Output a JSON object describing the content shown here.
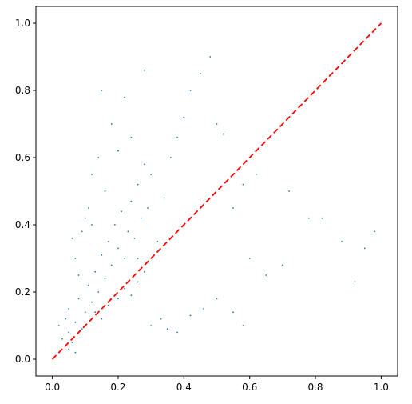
{
  "chart_data": {
    "type": "scatter",
    "title": "",
    "xlabel": "",
    "ylabel": "",
    "xlim": [
      -0.05,
      1.05
    ],
    "ylim": [
      -0.05,
      1.05
    ],
    "xticks": [
      0.0,
      0.2,
      0.4,
      0.6,
      0.8,
      1.0
    ],
    "xtick_labels": [
      "0.0",
      "0.2",
      "0.4",
      "0.6",
      "0.8",
      "1.0"
    ],
    "yticks": [
      0.0,
      0.2,
      0.4,
      0.6,
      0.8,
      1.0
    ],
    "ytick_labels": [
      "0.0",
      "0.2",
      "0.4",
      "0.6",
      "0.8",
      "1.0"
    ],
    "grid": false,
    "legend": "none",
    "point_color": "#1f77b4",
    "reference_line": {
      "x": [
        0.0,
        1.0
      ],
      "y": [
        0.0,
        1.0
      ],
      "color": "#ff0000",
      "style": "dashed"
    },
    "series": [
      {
        "points": [
          [
            0.02,
            0.1
          ],
          [
            0.03,
            0.06
          ],
          [
            0.04,
            0.12
          ],
          [
            0.05,
            0.08
          ],
          [
            0.05,
            0.15
          ],
          [
            0.06,
            0.05
          ],
          [
            0.07,
            0.11
          ],
          [
            0.08,
            0.18
          ],
          [
            0.09,
            0.09
          ],
          [
            0.1,
            0.14
          ],
          [
            0.11,
            0.22
          ],
          [
            0.12,
            0.17
          ],
          [
            0.13,
            0.26
          ],
          [
            0.14,
            0.2
          ],
          [
            0.15,
            0.31
          ],
          [
            0.16,
            0.24
          ],
          [
            0.17,
            0.35
          ],
          [
            0.18,
            0.28
          ],
          [
            0.19,
            0.4
          ],
          [
            0.2,
            0.33
          ],
          [
            0.21,
            0.44
          ],
          [
            0.22,
            0.3
          ],
          [
            0.23,
            0.38
          ],
          [
            0.24,
            0.47
          ],
          [
            0.25,
            0.36
          ],
          [
            0.26,
            0.52
          ],
          [
            0.27,
            0.42
          ],
          [
            0.28,
            0.58
          ],
          [
            0.29,
            0.45
          ],
          [
            0.3,
            0.55
          ],
          [
            0.06,
            0.36
          ],
          [
            0.09,
            0.38
          ],
          [
            0.1,
            0.42
          ],
          [
            0.11,
            0.45
          ],
          [
            0.12,
            0.4
          ],
          [
            0.08,
            0.25
          ],
          [
            0.07,
            0.3
          ],
          [
            0.13,
            0.14
          ],
          [
            0.15,
            0.12
          ],
          [
            0.17,
            0.16
          ],
          [
            0.2,
            0.18
          ],
          [
            0.22,
            0.21
          ],
          [
            0.24,
            0.19
          ],
          [
            0.26,
            0.23
          ],
          [
            0.28,
            0.26
          ],
          [
            0.32,
            0.35
          ],
          [
            0.34,
            0.48
          ],
          [
            0.36,
            0.6
          ],
          [
            0.38,
            0.66
          ],
          [
            0.4,
            0.72
          ],
          [
            0.42,
            0.8
          ],
          [
            0.45,
            0.85
          ],
          [
            0.48,
            0.9
          ],
          [
            0.5,
            0.7
          ],
          [
            0.52,
            0.67
          ],
          [
            0.55,
            0.45
          ],
          [
            0.58,
            0.52
          ],
          [
            0.6,
            0.3
          ],
          [
            0.62,
            0.55
          ],
          [
            0.65,
            0.25
          ],
          [
            0.3,
            0.1
          ],
          [
            0.33,
            0.12
          ],
          [
            0.35,
            0.09
          ],
          [
            0.38,
            0.08
          ],
          [
            0.42,
            0.13
          ],
          [
            0.46,
            0.15
          ],
          [
            0.5,
            0.18
          ],
          [
            0.55,
            0.14
          ],
          [
            0.58,
            0.1
          ],
          [
            0.7,
            0.28
          ],
          [
            0.72,
            0.5
          ],
          [
            0.78,
            0.42
          ],
          [
            0.82,
            0.42
          ],
          [
            0.88,
            0.35
          ],
          [
            0.92,
            0.23
          ],
          [
            0.95,
            0.33
          ],
          [
            0.98,
            0.38
          ],
          [
            0.04,
            0.04
          ],
          [
            0.05,
            0.03
          ],
          [
            0.07,
            0.02
          ],
          [
            0.15,
            0.8
          ],
          [
            0.22,
            0.78
          ],
          [
            0.28,
            0.86
          ],
          [
            0.18,
            0.7
          ],
          [
            0.24,
            0.66
          ],
          [
            0.12,
            0.55
          ],
          [
            0.14,
            0.6
          ],
          [
            0.16,
            0.5
          ],
          [
            0.2,
            0.62
          ],
          [
            0.26,
            0.3
          ]
        ]
      }
    ]
  }
}
